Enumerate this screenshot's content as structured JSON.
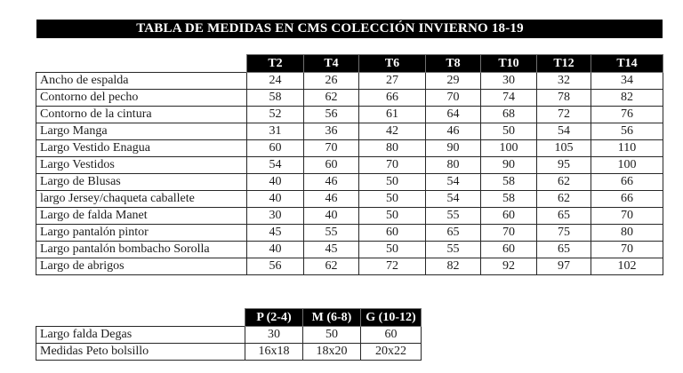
{
  "title": {
    "text": "TABLA DE MEDIDAS EN CMS COLECCIÓN INVIERNO 18-19"
  },
  "colors": {
    "header_bg": "#000000",
    "header_text": "#ffffff",
    "border": "#272727",
    "text": "#1c1c1c",
    "page_bg": "#ffffff"
  },
  "size_table": {
    "columns": [
      "T2",
      "T4",
      "T6",
      "T8",
      "T10",
      "T12",
      "T14"
    ],
    "rows": [
      {
        "label": "Ancho de espalda",
        "values": [
          "24",
          "26",
          "27",
          "29",
          "30",
          "32",
          "34"
        ]
      },
      {
        "label": "Contorno del pecho",
        "values": [
          "58",
          "62",
          "66",
          "70",
          "74",
          "78",
          "82"
        ]
      },
      {
        "label": "Contorno de la cintura",
        "values": [
          "52",
          "56",
          "61",
          "64",
          "68",
          "72",
          "76"
        ]
      },
      {
        "label": "Largo Manga",
        "values": [
          "31",
          "36",
          "42",
          "46",
          "50",
          "54",
          "56"
        ]
      },
      {
        "label": "Largo Vestido Enagua",
        "values": [
          "60",
          "70",
          "80",
          "90",
          "100",
          "105",
          "110"
        ]
      },
      {
        "label": "Largo Vestidos",
        "values": [
          "54",
          "60",
          "70",
          "80",
          "90",
          "95",
          "100"
        ]
      },
      {
        "label": "Largo de Blusas",
        "values": [
          "40",
          "46",
          "50",
          "54",
          "58",
          "62",
          "66"
        ]
      },
      {
        "label": "largo Jersey/chaqueta caballete",
        "values": [
          "40",
          "46",
          "50",
          "54",
          "58",
          "62",
          "66"
        ]
      },
      {
        "label": "Largo de falda Manet",
        "values": [
          "30",
          "40",
          "50",
          "55",
          "60",
          "65",
          "70"
        ]
      },
      {
        "label": "Largo pantalón pintor",
        "values": [
          "45",
          "55",
          "60",
          "65",
          "70",
          "75",
          "80"
        ]
      },
      {
        "label": "Largo pantalón bombacho Sorolla",
        "values": [
          "40",
          "45",
          "50",
          "55",
          "60",
          "65",
          "70"
        ]
      },
      {
        "label": "Largo de abrigos",
        "values": [
          "56",
          "62",
          "72",
          "82",
          "92",
          "97",
          "102"
        ]
      }
    ]
  },
  "accessory_table": {
    "columns": [
      "P (2-4)",
      "M (6-8)",
      "G (10-12)"
    ],
    "rows": [
      {
        "label": "Largo falda Degas",
        "values": [
          "30",
          "50",
          "60"
        ]
      },
      {
        "label": "Medidas Peto bolsillo",
        "values": [
          "16x18",
          "18x20",
          "20x22"
        ]
      }
    ]
  }
}
